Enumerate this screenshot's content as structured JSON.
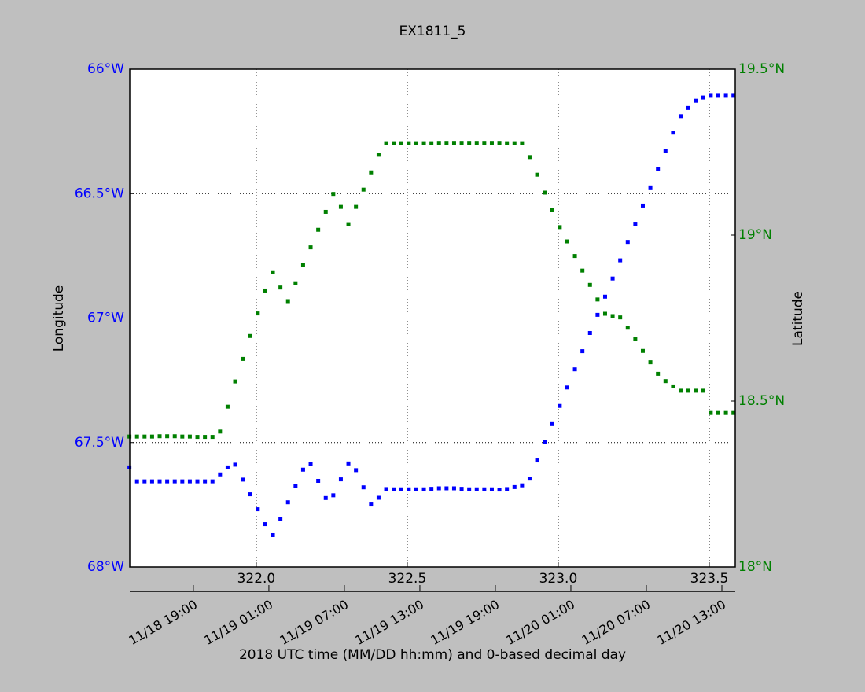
{
  "chart_data": {
    "type": "scatter",
    "title": "EX1811_5",
    "ylabel": "Longitude",
    "y2label": "Latitude",
    "xlabel": "2018 UTC time (MM/DD hh:mm) and 0-based decimal day",
    "xlim": [
      321.581,
      323.586
    ],
    "xticks": [
      {
        "value": 322,
        "label": "322.0"
      },
      322.5,
      {
        "value": 323,
        "label": "323.0"
      },
      323.5
    ],
    "x2ticks": [
      {
        "value": 321.7917,
        "label": "11/18 19:00"
      },
      {
        "value": 322.0417,
        "label": "11/19 01:00"
      },
      {
        "value": 322.2917,
        "label": "11/19 07:00"
      },
      {
        "value": 322.5417,
        "label": "11/19 13:00"
      },
      {
        "value": 322.7917,
        "label": "11/19 19:00"
      },
      {
        "value": 323.0417,
        "label": "11/20 01:00"
      },
      {
        "value": 323.2917,
        "label": "11/20 07:00"
      },
      {
        "value": 323.5417,
        "label": "11/20 13:00"
      }
    ],
    "ylim": [
      -68,
      -66
    ],
    "yticks": [
      {
        "value": -68,
        "label": "68°W"
      },
      {
        "value": -67.5,
        "label": "67.5°W"
      },
      {
        "value": -67,
        "label": "67°W"
      },
      {
        "value": -66.5,
        "label": "66.5°W"
      },
      {
        "value": -66,
        "label": "66°W"
      }
    ],
    "y2lim": [
      18,
      19.5
    ],
    "y2ticks": [
      {
        "value": 18,
        "label": "18°N"
      },
      {
        "value": 18.5,
        "label": "18.5°N"
      },
      {
        "value": 19,
        "label": "19°N"
      },
      {
        "value": 19.5,
        "label": "19.5°N"
      }
    ],
    "grid": true,
    "x": [
      321.58,
      321.605,
      321.63,
      321.655,
      321.68,
      321.705,
      321.73,
      321.755,
      321.78,
      321.805,
      321.83,
      321.855,
      321.88,
      321.905,
      321.93,
      321.955,
      321.98,
      322.005,
      322.03,
      322.055,
      322.08,
      322.105,
      322.13,
      322.155,
      322.18,
      322.205,
      322.23,
      322.255,
      322.28,
      322.305,
      322.33,
      322.355,
      322.38,
      322.405,
      322.43,
      322.455,
      322.48,
      322.505,
      322.53,
      322.555,
      322.58,
      322.605,
      322.63,
      322.655,
      322.68,
      322.705,
      322.73,
      322.755,
      322.78,
      322.805,
      322.83,
      322.855,
      322.88,
      322.905,
      322.93,
      322.955,
      322.98,
      323.005,
      323.03,
      323.055,
      323.08,
      323.105,
      323.13,
      323.155,
      323.18,
      323.205,
      323.23,
      323.255,
      323.28,
      323.305,
      323.33,
      323.355,
      323.38,
      323.405,
      323.43,
      323.455,
      323.48,
      323.505,
      323.53,
      323.555,
      323.58
    ],
    "series": [
      {
        "color": "#0000ff",
        "axis": "y",
        "values": [
          -67.6,
          -67.656,
          -67.656,
          -67.656,
          -67.656,
          -67.656,
          -67.656,
          -67.656,
          -67.656,
          -67.656,
          -67.656,
          -67.656,
          -67.628,
          -67.6,
          -67.589,
          -67.649,
          -67.708,
          -67.768,
          -67.828,
          -67.872,
          -67.806,
          -67.74,
          -67.675,
          -67.609,
          -67.586,
          -67.654,
          -67.723,
          -67.712,
          -67.648,
          -67.584,
          -67.611,
          -67.68,
          -67.749,
          -67.722,
          -67.687,
          -67.688,
          -67.688,
          -67.688,
          -67.688,
          -67.688,
          -67.686,
          -67.684,
          -67.684,
          -67.684,
          -67.686,
          -67.688,
          -67.688,
          -67.688,
          -67.688,
          -67.689,
          -67.687,
          -67.679,
          -67.672,
          -67.645,
          -67.572,
          -67.499,
          -67.426,
          -67.353,
          -67.279,
          -67.206,
          -67.133,
          -67.06,
          -66.987,
          -66.914,
          -66.841,
          -66.768,
          -66.694,
          -66.621,
          -66.548,
          -66.475,
          -66.402,
          -66.329,
          -66.255,
          -66.189,
          -66.156,
          -66.127,
          -66.114,
          -66.104,
          -66.104,
          -66.104,
          -66.104
        ]
      },
      {
        "color": "#008000",
        "axis": "y2",
        "values": [
          18.393,
          18.393,
          18.393,
          18.393,
          18.394,
          18.394,
          18.394,
          18.393,
          18.393,
          18.392,
          18.392,
          18.392,
          18.408,
          18.483,
          18.559,
          18.627,
          18.696,
          18.764,
          18.833,
          18.888,
          18.842,
          18.801,
          18.855,
          18.909,
          18.963,
          19.016,
          19.07,
          19.124,
          19.085,
          19.033,
          19.085,
          19.137,
          19.189,
          19.242,
          19.277,
          19.277,
          19.277,
          19.277,
          19.277,
          19.277,
          19.277,
          19.278,
          19.278,
          19.278,
          19.278,
          19.278,
          19.278,
          19.278,
          19.278,
          19.278,
          19.277,
          19.277,
          19.277,
          19.235,
          19.182,
          19.128,
          19.075,
          19.024,
          18.981,
          18.937,
          18.893,
          18.85,
          18.806,
          18.763,
          18.756,
          18.752,
          18.721,
          18.686,
          18.651,
          18.617,
          18.582,
          18.56,
          18.544,
          18.531,
          18.531,
          18.531,
          18.531,
          18.464,
          18.464,
          18.464,
          18.464
        ]
      }
    ]
  }
}
